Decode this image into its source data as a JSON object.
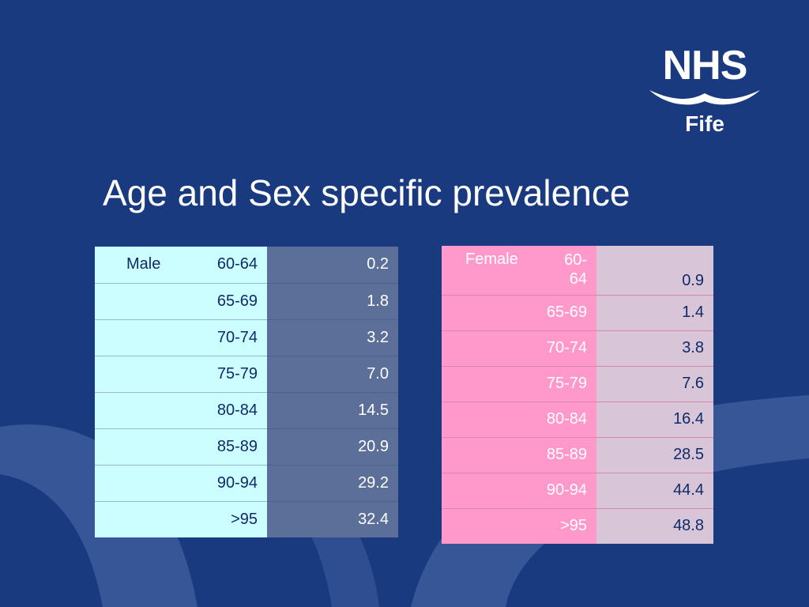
{
  "logo": {
    "brand": "NHS",
    "region": "Fife"
  },
  "slide": {
    "title": "Age and Sex specific prevalence"
  },
  "male": {
    "label": "Male",
    "rows": [
      {
        "age": "60-64",
        "value": "0.2"
      },
      {
        "age": "65-69",
        "value": "1.8"
      },
      {
        "age": "70-74",
        "value": "3.2"
      },
      {
        "age": "75-79",
        "value": "7.0"
      },
      {
        "age": "80-84",
        "value": "14.5"
      },
      {
        "age": "85-89",
        "value": "20.9"
      },
      {
        "age": "90-94",
        "value": "29.2"
      },
      {
        "age": ">95",
        "value": "32.4"
      }
    ]
  },
  "female": {
    "label": "Female",
    "first_age_line1": "60-",
    "first_age_line2": "64",
    "rows": [
      {
        "age": "60-64",
        "value": "0.9"
      },
      {
        "age": "65-69",
        "value": "1.4"
      },
      {
        "age": "70-74",
        "value": "3.8"
      },
      {
        "age": "75-79",
        "value": "7.6"
      },
      {
        "age": "80-84",
        "value": "16.4"
      },
      {
        "age": "85-89",
        "value": "28.5"
      },
      {
        "age": "90-94",
        "value": "44.4"
      },
      {
        "age": ">95",
        "value": "48.8"
      }
    ]
  },
  "colors": {
    "background": "#1a3a80",
    "male_label_fill": "#ccfeff",
    "male_value_fill": "#5b6f99",
    "female_label_fill": "#ff99cc",
    "female_value_fill": "#d8c6d8"
  }
}
